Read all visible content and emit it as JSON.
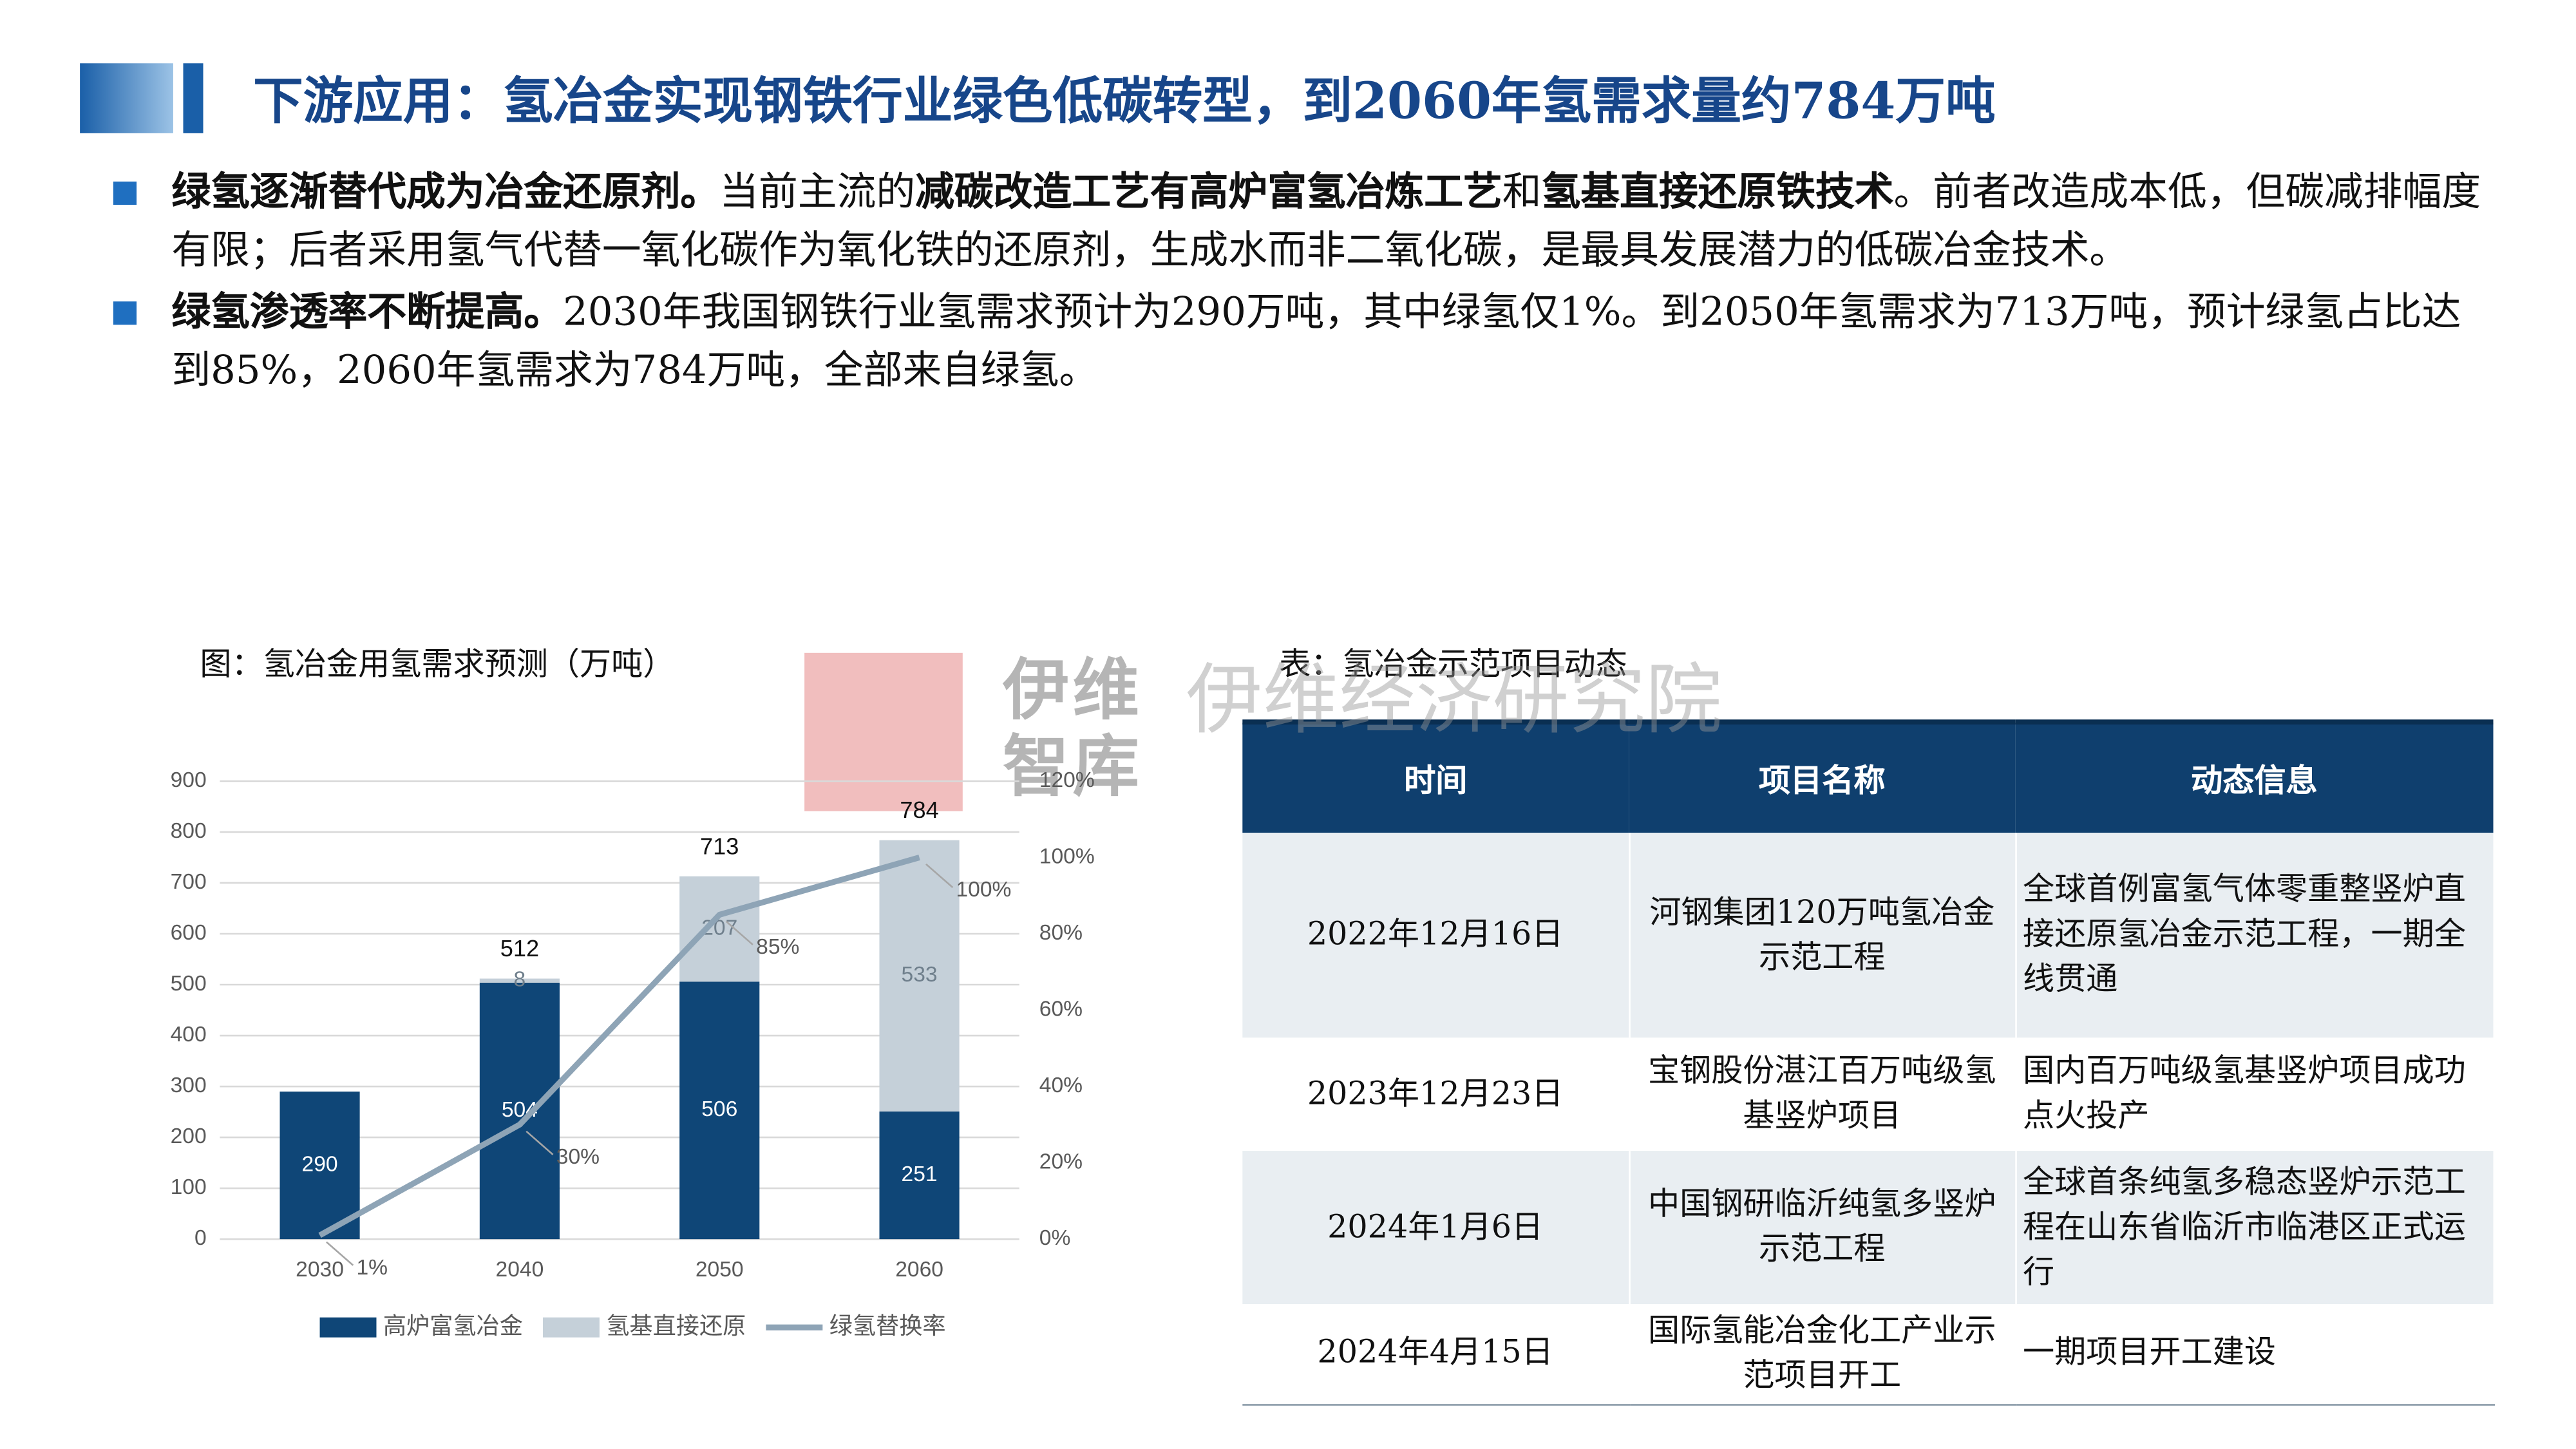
{
  "header": {
    "title": "下游应用：氢冶金实现钢铁行业绿色低碳转型，到2060年氢需求量约784万吨"
  },
  "bullets": [
    {
      "runs": [
        {
          "text": "绿氢逐渐替代成为冶金还原剂。",
          "bold": true
        },
        {
          "text": "当前主流的",
          "bold": false
        },
        {
          "text": "减碳改造工艺有高炉富氢冶炼工艺",
          "bold": true
        },
        {
          "text": "和",
          "bold": false
        },
        {
          "text": "氢基直接还原铁技术",
          "bold": true
        },
        {
          "text": "。前者改造成本低，但碳减排幅度有限；后者采用氢气代替一氧化碳作为氧化铁的还原剂，生成水而非二氧化碳，是最具发展潜力的低碳冶金技术。",
          "bold": false
        }
      ]
    },
    {
      "runs": [
        {
          "text": "绿氢渗透率不断提高。",
          "bold": true
        },
        {
          "text": "2030年我国钢铁行业氢需求预计为290万吨，其中绿氢仅1%。到2050年氢需求为713万吨，预计绿氢占比达到85%，2060年氢需求为784万吨，全部来自绿氢。",
          "bold": false
        }
      ]
    }
  ],
  "watermark": {
    "logo": "伊维智库",
    "name": "伊维经济研究院"
  },
  "chart_data": {
    "type": "bar",
    "title": "图：氢冶金用氢需求预测（万吨）",
    "categories": [
      "2030",
      "2040",
      "2050",
      "2060"
    ],
    "series": [
      {
        "name": "高炉富氢冶金",
        "color": "#0f4677",
        "values": [
          290,
          504,
          506,
          251
        ]
      },
      {
        "name": "氢基直接还原",
        "color": "#c5d0d9",
        "values": [
          null,
          8,
          207,
          533
        ]
      },
      {
        "name": "绿氢替换率",
        "color": "#8ea4b6",
        "type": "line",
        "axis": "y2",
        "values": [
          1,
          30,
          85,
          100
        ],
        "value_labels": [
          "1%",
          "30%",
          "85%",
          "100%"
        ]
      }
    ],
    "totals": [
      null,
      512,
      713,
      784
    ],
    "ylim": [
      0,
      900
    ],
    "yticks": [
      0,
      100,
      200,
      300,
      400,
      500,
      600,
      700,
      800,
      900
    ],
    "y2lim": [
      0,
      120
    ],
    "y2ticks": [
      {
        "value": 0,
        "label": "0%"
      },
      {
        "value": 20,
        "label": "20%"
      },
      {
        "value": 40,
        "label": "40%"
      },
      {
        "value": 60,
        "label": "60%"
      },
      {
        "value": 80,
        "label": "80%"
      },
      {
        "value": 100,
        "label": "100%"
      },
      {
        "value": 120,
        "label": "120%"
      }
    ],
    "stacked": true,
    "grid": true,
    "legend": "bottom"
  },
  "table": {
    "title": "表：氢冶金示范项目动态",
    "header": [
      "时间",
      "项目名称",
      "动态信息"
    ],
    "rows": [
      [
        "2022年12月16日",
        "河钢集团120万吨氢冶金示范工程",
        "全球首例富氢气体零重整竖炉直接还原氢冶金示范工程，一期全线贯通"
      ],
      [
        "2023年12月23日",
        "宝钢股份湛江百万吨级氢基竖炉项目",
        "国内百万吨级氢基竖炉项目成功点火投产"
      ],
      [
        "2024年1月6日",
        "中国钢研临沂纯氢多竖炉示范工程",
        "全球首条纯氢多稳态竖炉示范工程在山东省临沂市临港区正式运行"
      ],
      [
        "2024年4月15日",
        "国际氢能冶金化工产业示范项目开工",
        "一期项目开工建设"
      ]
    ]
  }
}
